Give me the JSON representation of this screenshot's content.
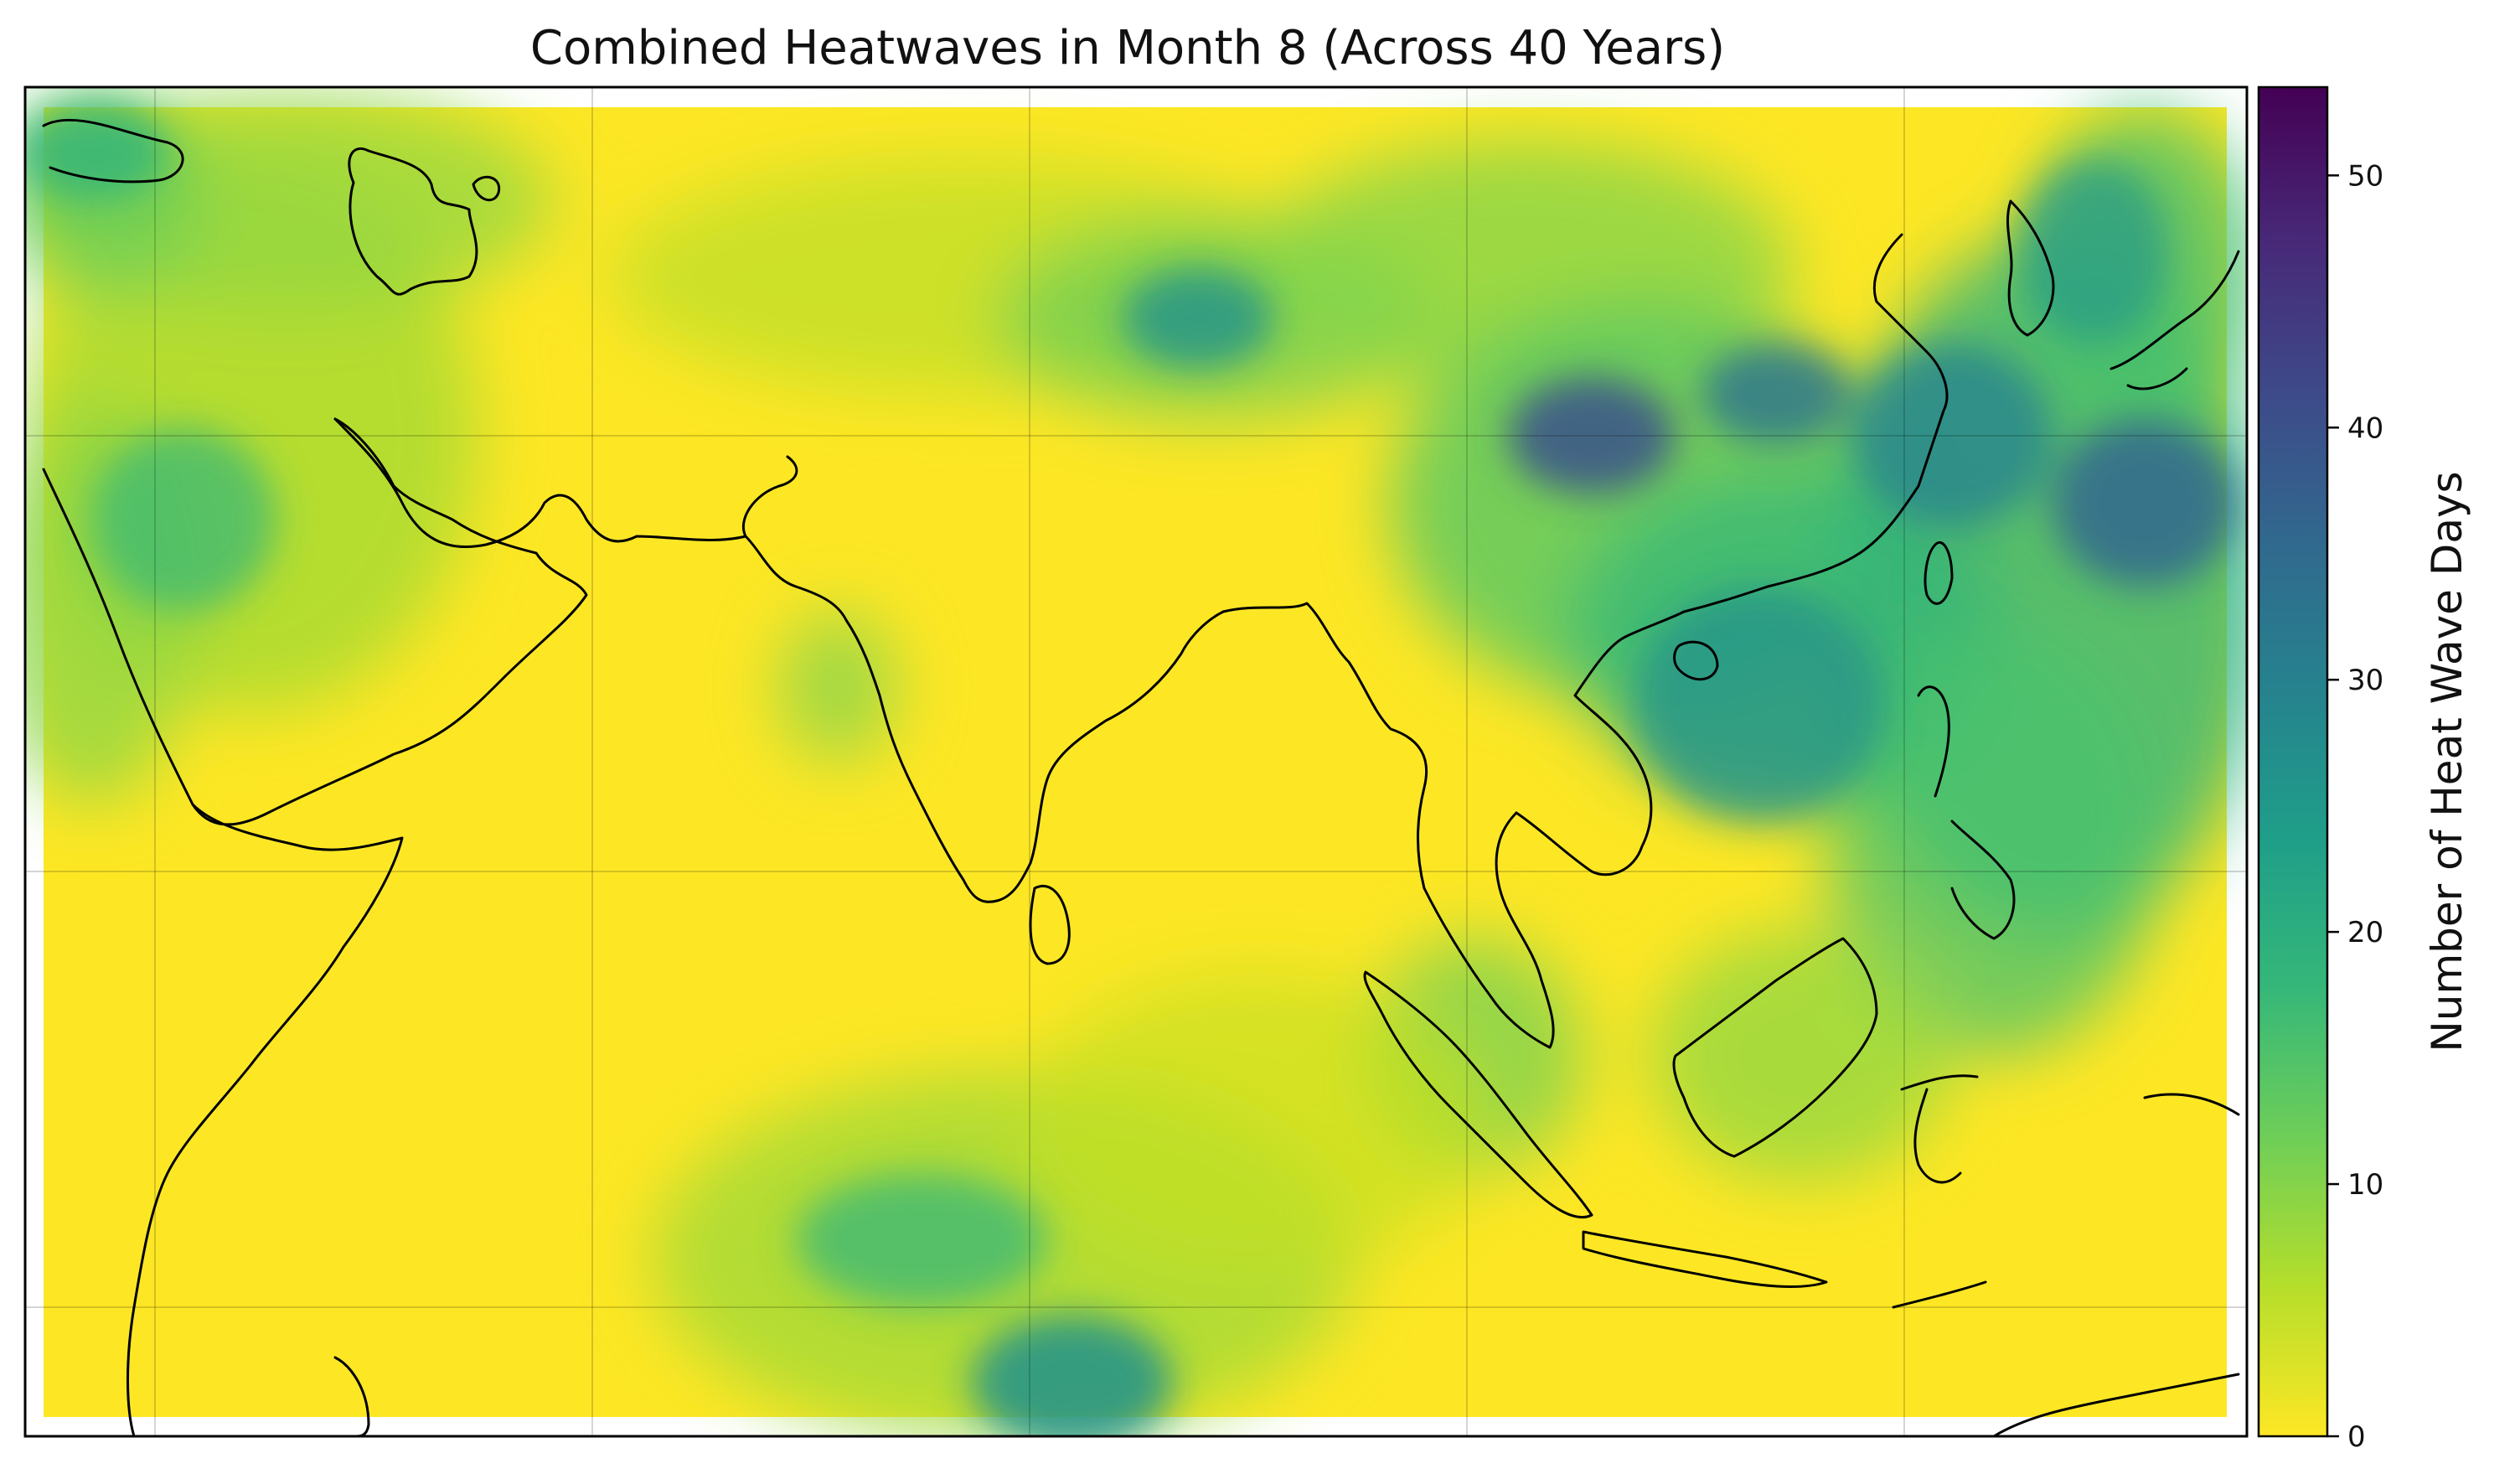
{
  "figure": {
    "title": "Combined Heatwaves in Month 8 (Across 40 Years)"
  },
  "colorbar": {
    "label": "Number of Heat Wave Days",
    "colormap": "viridis_r",
    "range": [
      0,
      53.5
    ],
    "ticks": [
      {
        "value": 0,
        "label": "0"
      },
      {
        "value": 10,
        "label": "10"
      },
      {
        "value": 20,
        "label": "20"
      },
      {
        "value": 30,
        "label": "30"
      },
      {
        "value": 40,
        "label": "40"
      },
      {
        "value": 50,
        "label": "50"
      }
    ],
    "stops": [
      "#fde725",
      "#b5de2b",
      "#6ece58",
      "#35b779",
      "#1f9e89",
      "#26828e",
      "#31688e",
      "#3e4989",
      "#482878",
      "#440154"
    ]
  },
  "map": {
    "background_color": "#fde725",
    "coastline_color": "#000000",
    "gridlines": true,
    "hotspots": [
      {
        "region": "central-east-china",
        "value": 40
      },
      {
        "region": "east-china-sea",
        "value": 35
      },
      {
        "region": "western-pacific",
        "value": 34
      },
      {
        "region": "south-china-sea",
        "value": 27
      },
      {
        "region": "philippines",
        "value": 25
      },
      {
        "region": "northern-china-mongolia",
        "value": 22
      },
      {
        "region": "korea-japan",
        "value": 22
      },
      {
        "region": "southern-indian-ocean",
        "value": 26
      },
      {
        "region": "arabia-iran",
        "value": 18
      },
      {
        "region": "caspian",
        "value": 20
      },
      {
        "region": "sumatra-borneo",
        "value": 18
      }
    ]
  }
}
